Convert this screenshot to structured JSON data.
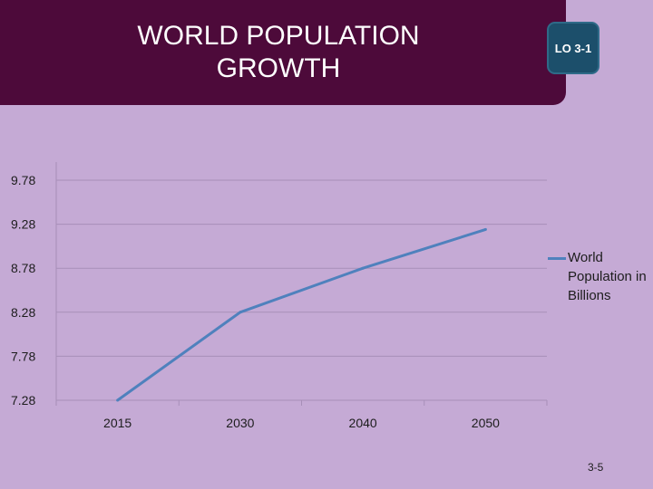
{
  "header": {
    "title": "WORLD POPULATION\nGROWTH",
    "lo_badge": "LO 3-1"
  },
  "footer": {
    "page_number": "3-5"
  },
  "colors": {
    "background": "#c5aad5",
    "title_bar": "#4d0a3a",
    "badge": "#1c4f6b",
    "series_line": "#4f81bd",
    "gridline": "#a78fb8"
  },
  "chart_data": {
    "type": "line",
    "title": "",
    "xlabel": "",
    "ylabel": "",
    "categories": [
      "2015",
      "2030",
      "2040",
      "2050"
    ],
    "ylim": [
      7.28,
      9.78
    ],
    "yticks": [
      7.28,
      7.78,
      8.28,
      8.78,
      9.28,
      9.78
    ],
    "ytick_labels": [
      "7.28",
      "7.78",
      "8.28",
      "8.78",
      "9.28",
      "9.78"
    ],
    "grid": true,
    "legend_position": "right",
    "series": [
      {
        "name": "World Population in Billions",
        "values": [
          7.28,
          8.28,
          8.78,
          9.22
        ]
      }
    ]
  }
}
